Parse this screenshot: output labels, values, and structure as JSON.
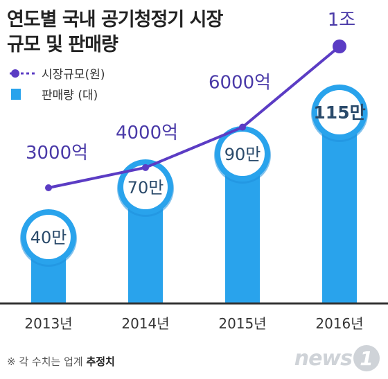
{
  "title": {
    "line1": "연도별 국내 공기청정기 시장",
    "line2": "규모 및 판매량"
  },
  "legend": {
    "line_label": "시장규모(원)",
    "bar_label": "판매량 (대)"
  },
  "colors": {
    "line": "#5b3cc4",
    "bar": "#29a3ec",
    "bar_shade": "#1f8fdc",
    "label_text": "#4a3aa8",
    "circle_text": "#2a4a6a",
    "axis": "#333333"
  },
  "chart_data": {
    "type": "bar",
    "categories": [
      "2013년",
      "2014년",
      "2015년",
      "2016년"
    ],
    "series": [
      {
        "name": "시장규모(원)",
        "kind": "line",
        "values": [
          3000,
          4000,
          6000,
          10000
        ],
        "unit": "억원",
        "value_labels": [
          "3000억",
          "4000억",
          "6000억",
          "1조"
        ]
      },
      {
        "name": "판매량 (대)",
        "kind": "bar",
        "values": [
          40,
          70,
          90,
          115
        ],
        "unit": "만대",
        "value_labels": [
          "40만",
          "70만",
          "90만",
          "115만"
        ]
      }
    ]
  },
  "footnote": {
    "prefix": "※ 각 수치는 업계 ",
    "emphasis": "추정치"
  },
  "logo": {
    "text": "news",
    "mark": "1"
  }
}
